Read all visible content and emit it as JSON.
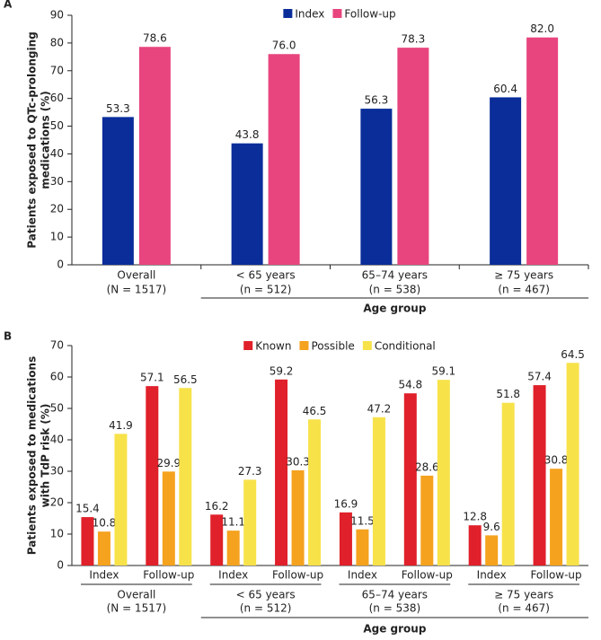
{
  "chart_data": [
    {
      "type": "bar",
      "panel": "A",
      "ylabel": [
        "Patients exposed to QTc-prolonging",
        "medications (%)"
      ],
      "categories": [
        "Overall",
        "< 65 years",
        "65–74 years",
        "≥ 75 years"
      ],
      "category_notes": [
        "(N = 1517)",
        "(n = 512)",
        "(n = 538)",
        "(n = 467)"
      ],
      "xlabel": "Age group",
      "series": [
        {
          "name": "Index",
          "color": "#0a2d9a",
          "values": [
            53.3,
            43.8,
            56.3,
            60.4
          ]
        },
        {
          "name": "Follow-up",
          "color": "#e8457f",
          "values": [
            78.6,
            76.0,
            78.3,
            82.0
          ],
          "value_labels": [
            "78.6",
            "76.0",
            "78.3",
            "82.0"
          ]
        }
      ],
      "ylim": [
        0,
        90
      ],
      "yticks": [
        0,
        10,
        20,
        30,
        40,
        50,
        60,
        70,
        80,
        90
      ]
    },
    {
      "type": "grouped_bar",
      "panel": "B",
      "ylabel": [
        "Patients exposed to medications",
        "with TdP risk (%)"
      ],
      "categories": [
        "Index",
        "Follow-up",
        "Index",
        "Follow-up",
        "Index",
        "Follow-up",
        "Index",
        "Follow-up"
      ],
      "groups": [
        "Overall",
        "< 65 years",
        "65–74 years",
        "≥ 75 years"
      ],
      "group_notes": [
        "(N = 1517)",
        "(n = 512)",
        "(n = 538)",
        "(n = 467)"
      ],
      "xlabel": "Age group",
      "series": [
        {
          "name": "Known",
          "color": "#e0202a",
          "values": [
            15.4,
            57.1,
            16.2,
            59.2,
            16.9,
            54.8,
            12.8,
            57.4
          ]
        },
        {
          "name": "Possible",
          "color": "#f5a21e",
          "values": [
            10.8,
            29.9,
            11.1,
            30.3,
            11.5,
            28.6,
            9.6,
            30.8
          ]
        },
        {
          "name": "Conditional",
          "color": "#f7e24a",
          "values": [
            41.9,
            56.5,
            27.3,
            46.5,
            47.2,
            59.1,
            51.8,
            64.5
          ]
        }
      ],
      "ylim": [
        0,
        70
      ],
      "yticks": [
        0,
        10,
        20,
        30,
        40,
        50,
        60,
        70
      ]
    }
  ]
}
